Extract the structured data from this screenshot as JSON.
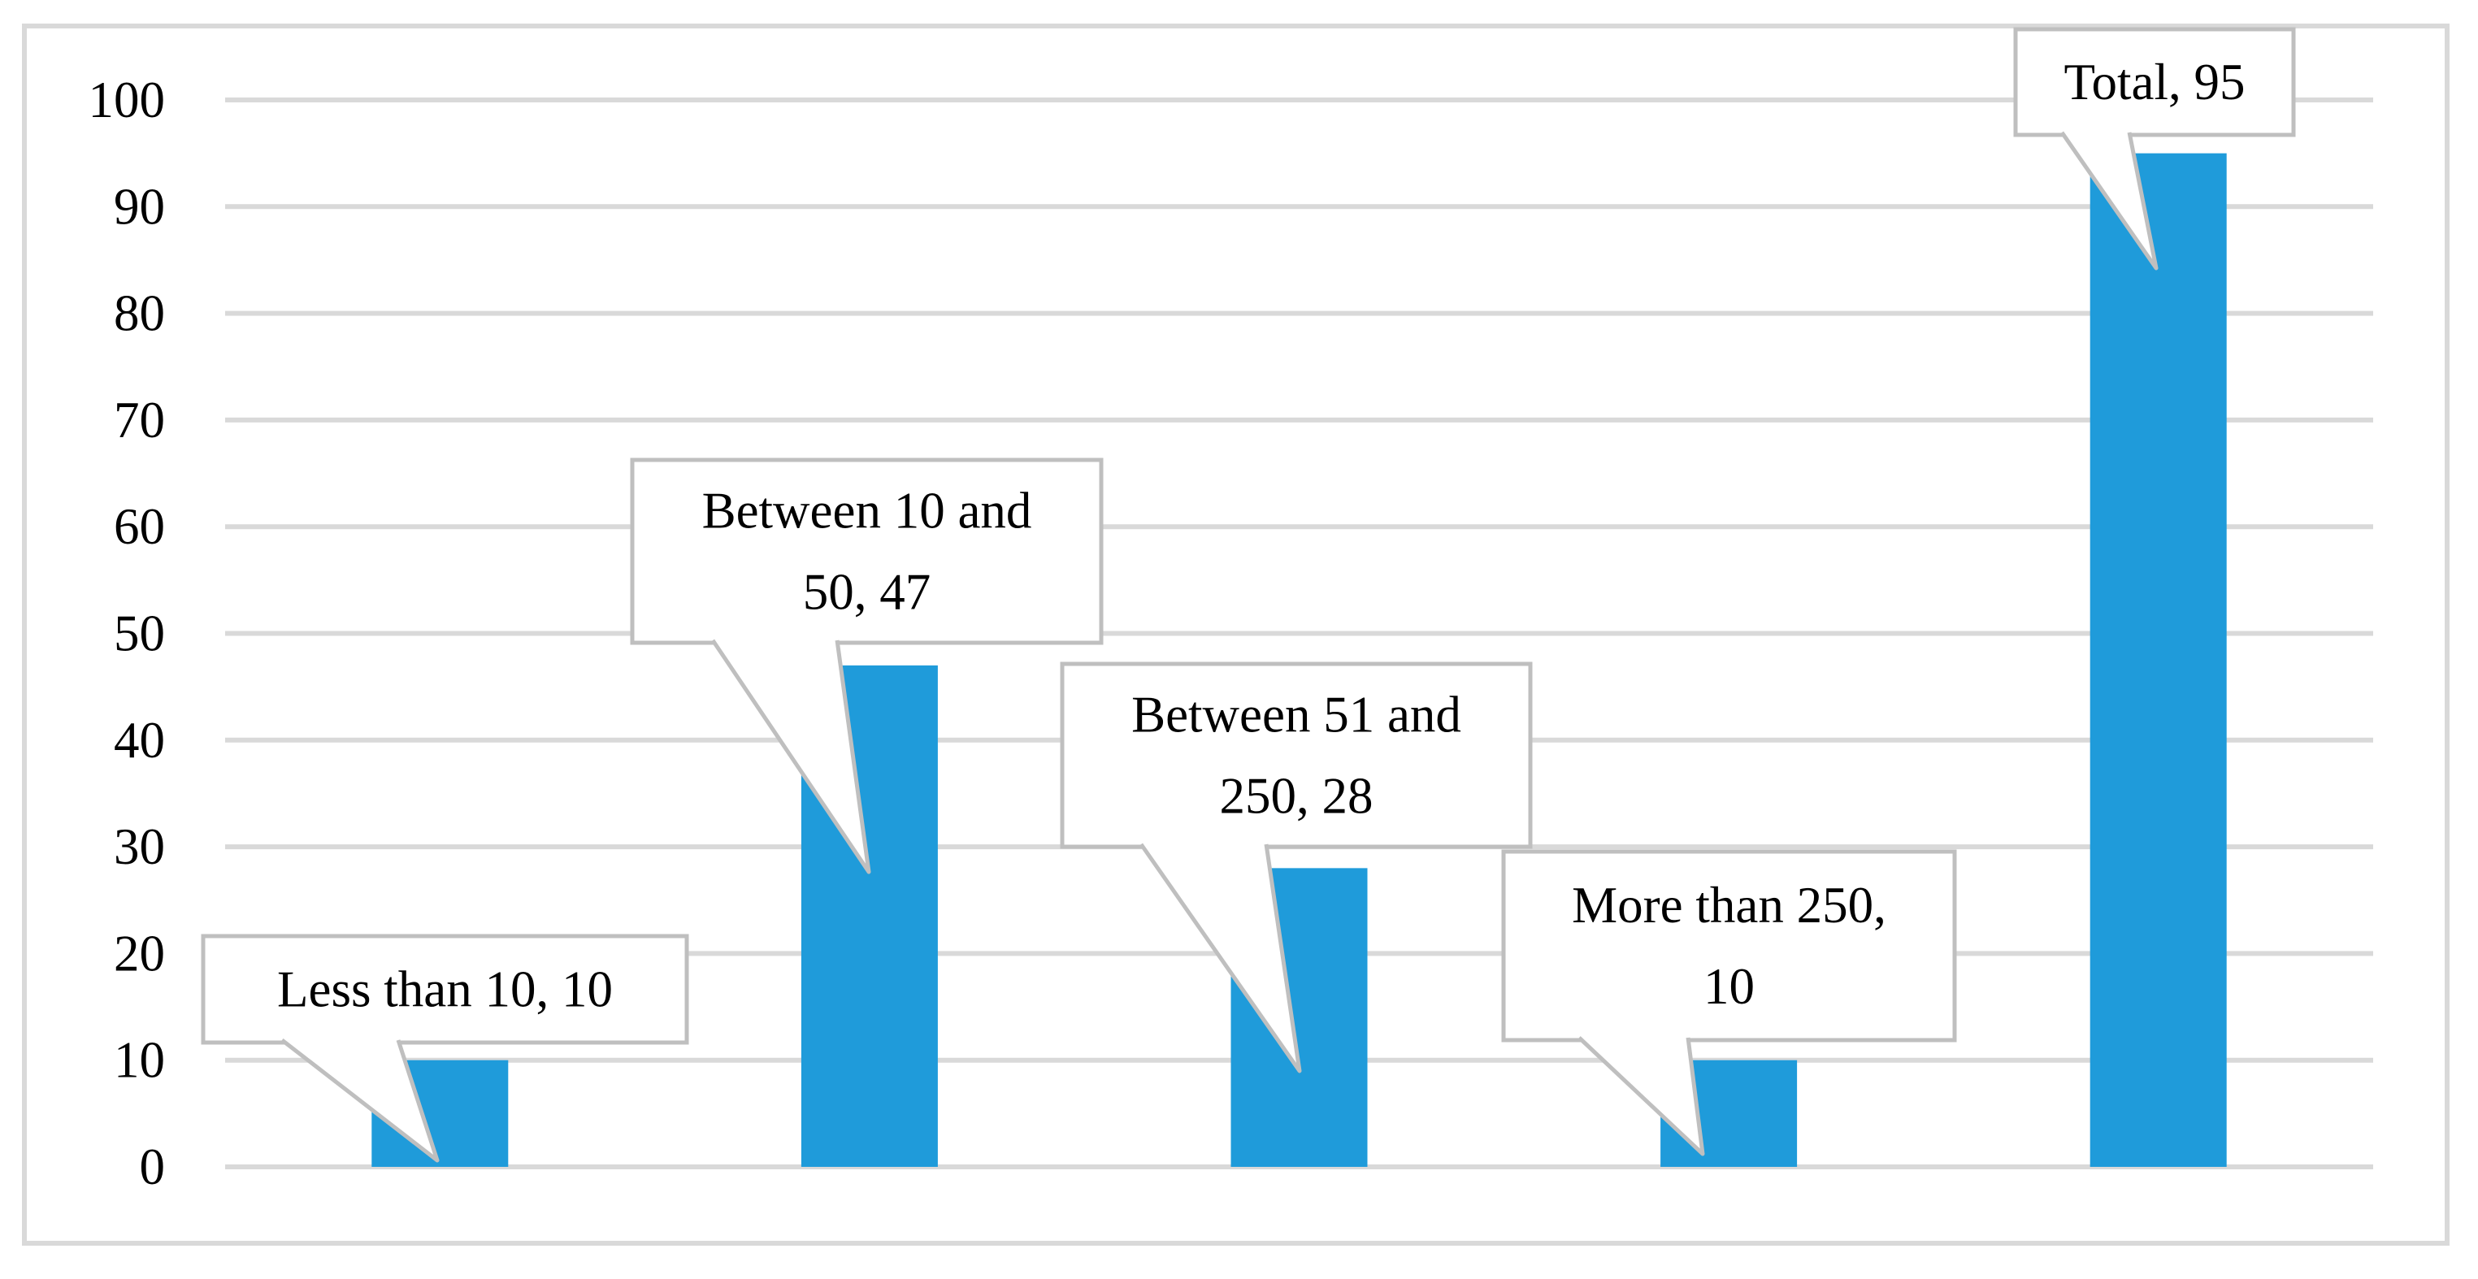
{
  "figure": {
    "description": "Bar chart of company counts by size category with callout data labels",
    "background": "#ffffff"
  },
  "chart_data": {
    "type": "bar",
    "title": "",
    "xlabel": "",
    "ylabel": "",
    "categories": [
      "Less than 10",
      "Between 10 and 50",
      "Between 51 and 250",
      "More than 250",
      "Total"
    ],
    "values": [
      10,
      47,
      28,
      10,
      95
    ],
    "data_label_lines": [
      [
        "Less than 10, 10"
      ],
      [
        "Between 10 and",
        "50, 47"
      ],
      [
        "Between 51 and",
        "250, 28"
      ],
      [
        "More than 250,",
        "10"
      ],
      [
        "Total, 95"
      ]
    ],
    "ylim": [
      0,
      100
    ],
    "yticks": [
      0,
      10,
      20,
      30,
      40,
      50,
      60,
      70,
      80,
      90,
      100
    ],
    "ytick_labels": [
      "0",
      "10",
      "20",
      "30",
      "40",
      "50",
      "60",
      "70",
      "80",
      "90",
      "100"
    ],
    "grid": "horizontal",
    "legend_position": "none",
    "colors": {
      "bar": "#1f9bda",
      "gridline": "#d9d9d9",
      "frame_border": "#d9d9d9",
      "callout_border": "#bfbfbf",
      "callout_fill": "#ffffff",
      "text": "#000000",
      "background": "#ffffff"
    }
  }
}
